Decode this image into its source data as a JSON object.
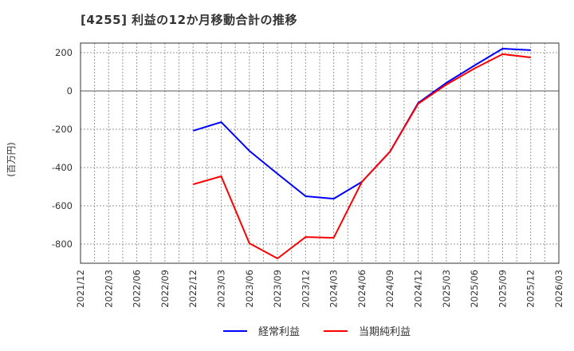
{
  "chart_data": {
    "type": "line",
    "title": "[4255]  利益の12か月移動合計の推移",
    "xlabel": "",
    "ylabel": "(百万円)",
    "ylim": [
      -900,
      250
    ],
    "yticks": [
      200,
      0,
      -200,
      -400,
      -600,
      -800
    ],
    "x": [
      "2021/12",
      "2022/03",
      "2022/06",
      "2022/09",
      "2022/12",
      "2023/03",
      "2023/06",
      "2023/09",
      "2023/12",
      "2024/03",
      "2024/06",
      "2024/09",
      "2024/12",
      "2025/03",
      "2025/06",
      "2025/09",
      "2025/12",
      "2026/03"
    ],
    "grid": true,
    "legend_position": "bottom",
    "series": [
      {
        "name": "経常利益",
        "color": "#0000ff",
        "values": [
          null,
          null,
          null,
          null,
          -208,
          -163,
          -313,
          -433,
          -550,
          -563,
          -475,
          -317,
          -63,
          42,
          133,
          221,
          213,
          null
        ]
      },
      {
        "name": "当期純利益",
        "color": "#ff0000",
        "values": [
          null,
          null,
          null,
          null,
          -488,
          -446,
          -796,
          -875,
          -763,
          -767,
          -475,
          -317,
          -67,
          33,
          117,
          192,
          175,
          null
        ]
      }
    ]
  }
}
